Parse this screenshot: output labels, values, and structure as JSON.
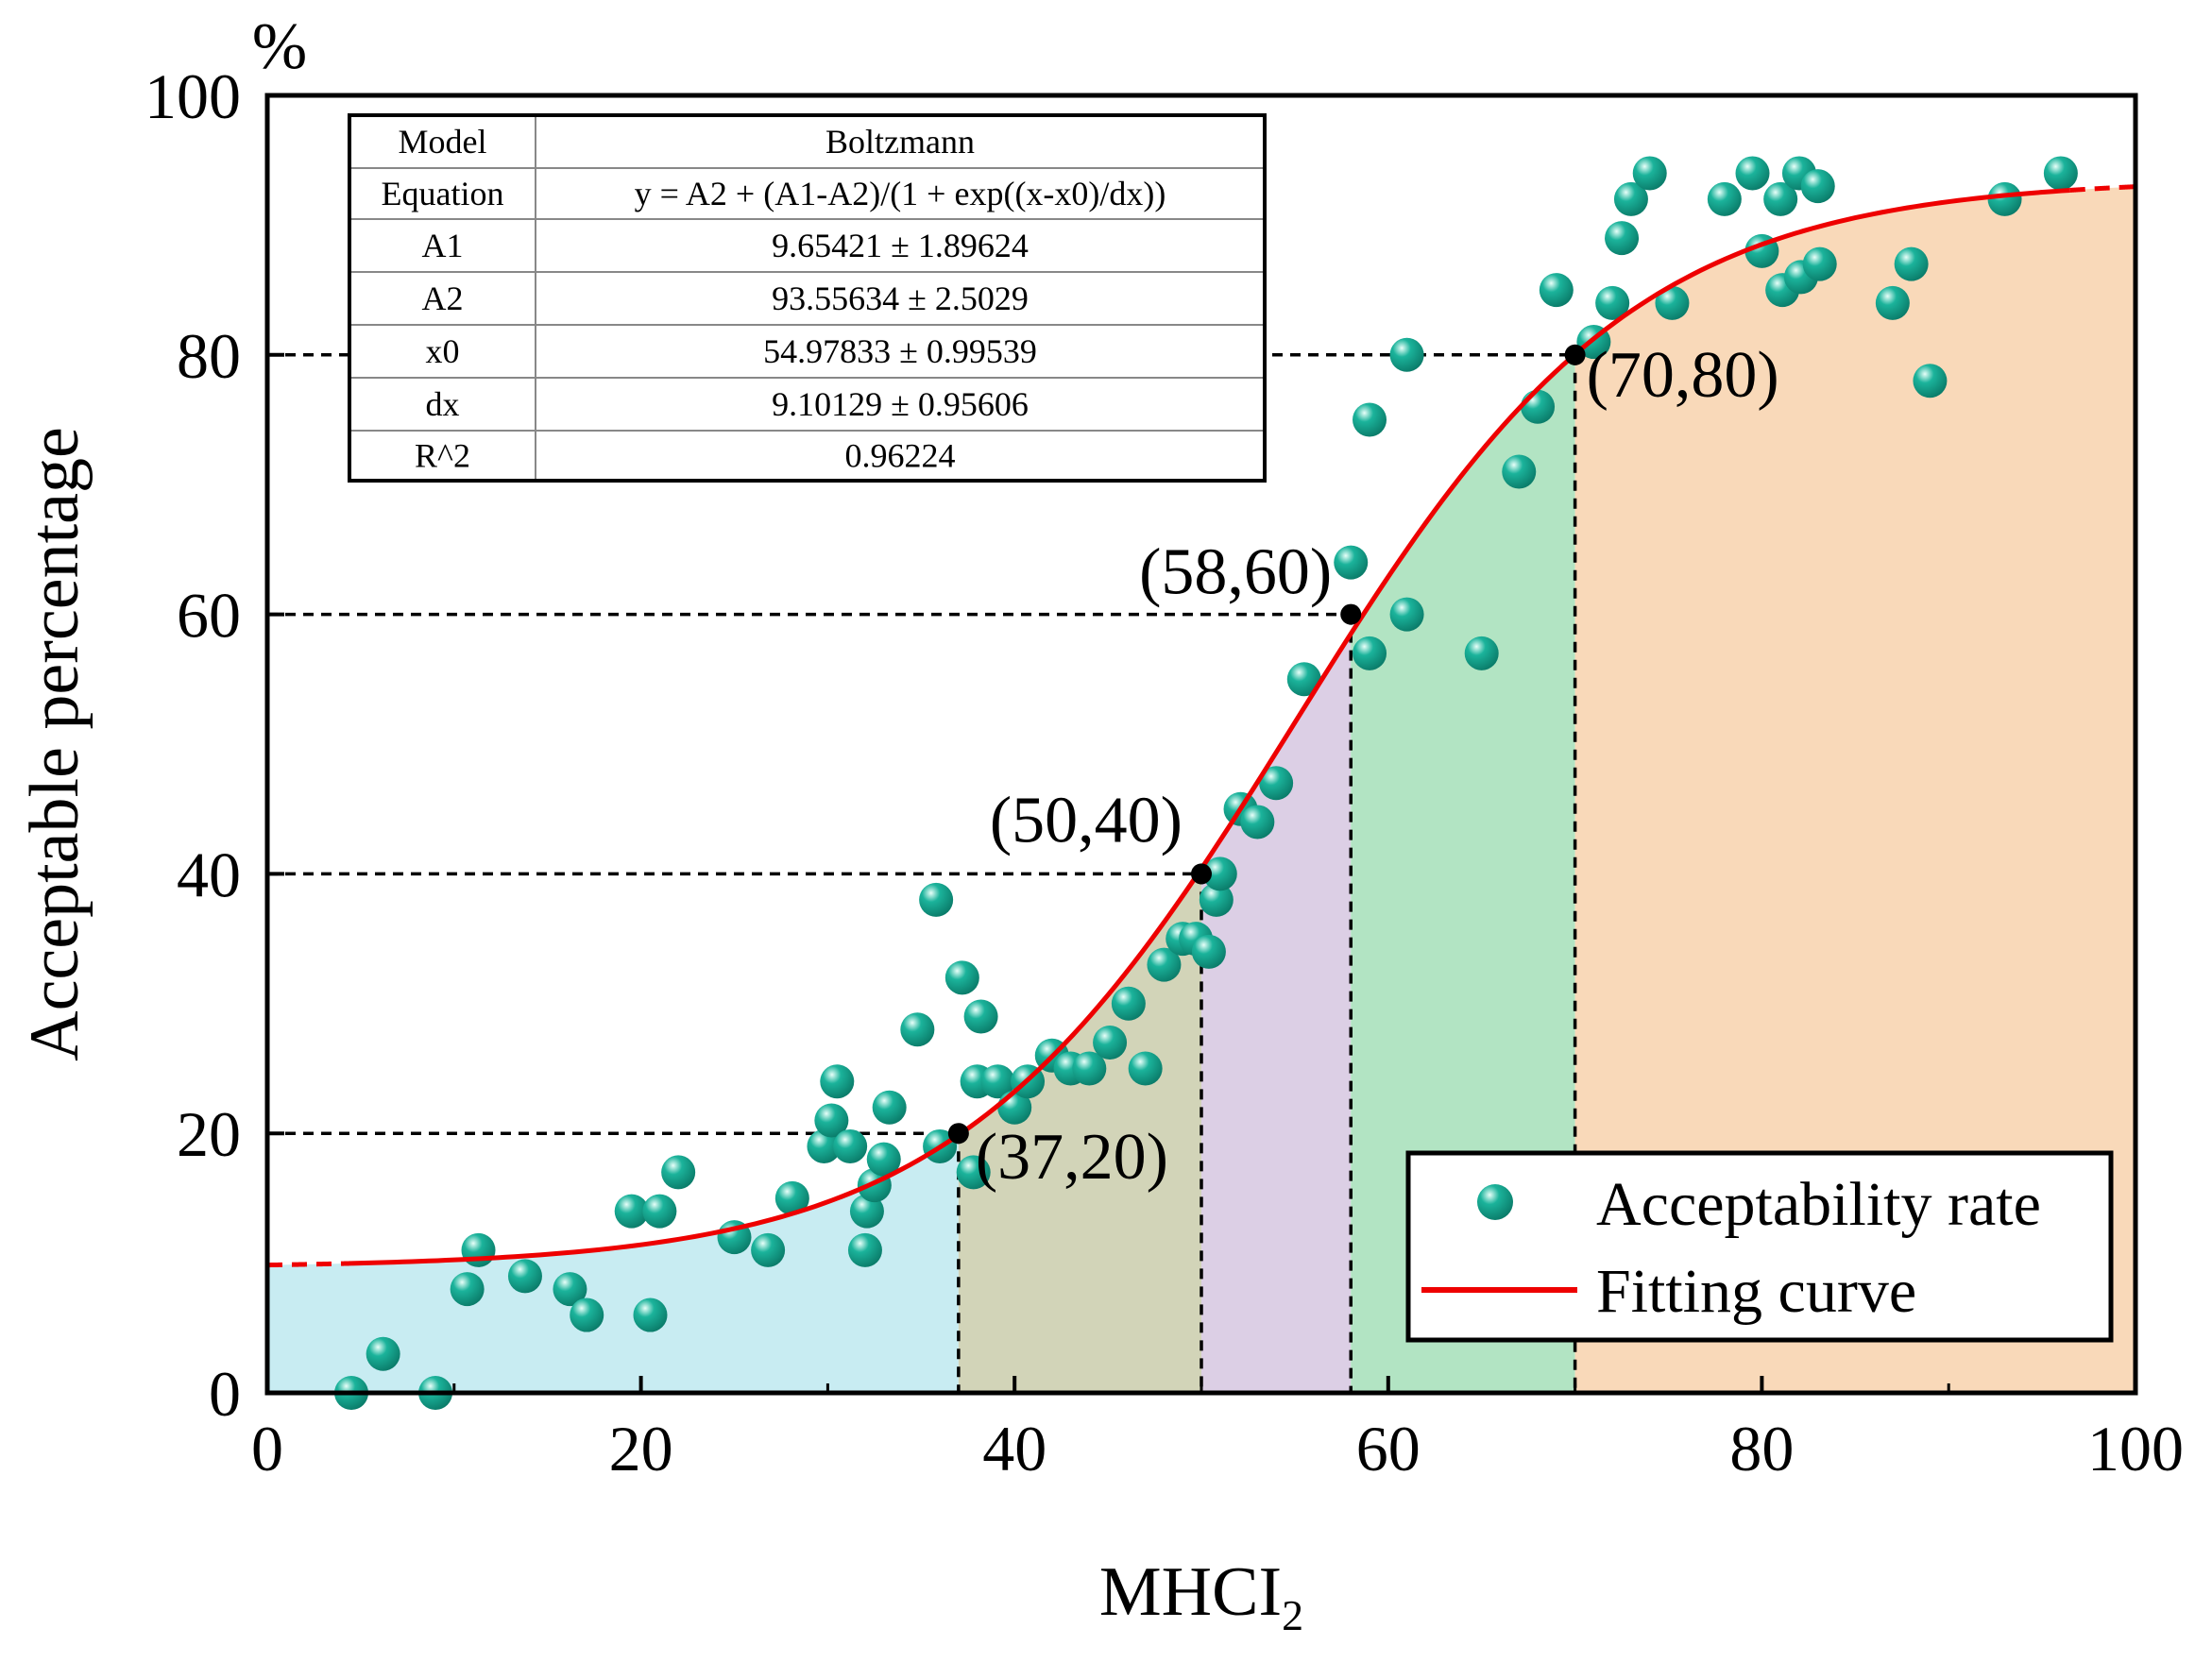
{
  "chart_data": {
    "type": "scatter",
    "xlabel": "MHCI",
    "xlabel_subscript": "2",
    "ylabel": "Acceptable percentage",
    "y_unit": "%",
    "xlim": [
      0,
      100
    ],
    "ylim": [
      0,
      100
    ],
    "x_ticks": [
      "0",
      "20",
      "40",
      "60",
      "80",
      "100"
    ],
    "y_ticks": [
      "0",
      "20",
      "40",
      "60",
      "80",
      "100"
    ],
    "grid": false,
    "legend_position": "bottom-right",
    "series": [
      {
        "name": "Acceptability rate",
        "kind": "scatter",
        "color": "#1bb39b",
        "points": [
          [
            4.5,
            0
          ],
          [
            6.2,
            3
          ],
          [
            9,
            0
          ],
          [
            10.7,
            8
          ],
          [
            11.3,
            11
          ],
          [
            13.8,
            9
          ],
          [
            16.2,
            8
          ],
          [
            17.1,
            6
          ],
          [
            19.5,
            14
          ],
          [
            20.5,
            6
          ],
          [
            21,
            14
          ],
          [
            22,
            17
          ],
          [
            25,
            12
          ],
          [
            26.8,
            11
          ],
          [
            28.1,
            15
          ],
          [
            29.8,
            19
          ],
          [
            30.2,
            21
          ],
          [
            30.5,
            24
          ],
          [
            31.2,
            19
          ],
          [
            32,
            11
          ],
          [
            32.1,
            14
          ],
          [
            32.5,
            16
          ],
          [
            33,
            18
          ],
          [
            33.3,
            22
          ],
          [
            34.8,
            28
          ],
          [
            35.8,
            38
          ],
          [
            36,
            19
          ],
          [
            37.2,
            32
          ],
          [
            37.8,
            17
          ],
          [
            38,
            24
          ],
          [
            38.2,
            29
          ],
          [
            39.1,
            24
          ],
          [
            40,
            22
          ],
          [
            40.7,
            24
          ],
          [
            42,
            26
          ],
          [
            43,
            25
          ],
          [
            44,
            25
          ],
          [
            45.1,
            27
          ],
          [
            46.1,
            30
          ],
          [
            47,
            25
          ],
          [
            48,
            33
          ],
          [
            49,
            35
          ],
          [
            49.7,
            35
          ],
          [
            50.4,
            34
          ],
          [
            50.8,
            38
          ],
          [
            51,
            40
          ],
          [
            52.1,
            45
          ],
          [
            53,
            44
          ],
          [
            54,
            47
          ],
          [
            55.5,
            55
          ],
          [
            58,
            64
          ],
          [
            59,
            75
          ],
          [
            59,
            57
          ],
          [
            61,
            80
          ],
          [
            61,
            60
          ],
          [
            65,
            57
          ],
          [
            67,
            71
          ],
          [
            68,
            76
          ],
          [
            69,
            85
          ],
          [
            71,
            81
          ],
          [
            72,
            84
          ],
          [
            72.5,
            89
          ],
          [
            73,
            92
          ],
          [
            74,
            94
          ],
          [
            75.2,
            84
          ],
          [
            78,
            92
          ],
          [
            79.5,
            94
          ],
          [
            80,
            88
          ],
          [
            81,
            92
          ],
          [
            81.1,
            85
          ],
          [
            82,
            94
          ],
          [
            82.1,
            86
          ],
          [
            83,
            93
          ],
          [
            83.1,
            87
          ],
          [
            87,
            84
          ],
          [
            88,
            87
          ],
          [
            89,
            78
          ],
          [
            93,
            92
          ],
          [
            96,
            94
          ]
        ]
      },
      {
        "name": "Fitting curve",
        "kind": "line",
        "color": "#ee0000",
        "model": "boltzmann",
        "params": {
          "A1": 9.65421,
          "A2": 93.55634,
          "x0": 54.97833,
          "dx": 9.10129
        },
        "x_range": [
          0,
          100
        ]
      }
    ],
    "key_points": [
      {
        "x": 37,
        "y": 20,
        "label": "(37,20)"
      },
      {
        "x": 50,
        "y": 40,
        "label": "(50,40)"
      },
      {
        "x": 58,
        "y": 60,
        "label": "(58,60)"
      },
      {
        "x": 70,
        "y": 80,
        "label": "(70,80)"
      }
    ],
    "regions": [
      {
        "x_range": [
          0,
          37
        ],
        "color": "#c8ecf2"
      },
      {
        "x_range": [
          37,
          50
        ],
        "color": "#d2d4b8"
      },
      {
        "x_range": [
          50,
          58
        ],
        "color": "#dccfe5"
      },
      {
        "x_range": [
          58,
          70
        ],
        "color": "#b2e4c3"
      },
      {
        "x_range": [
          70,
          100
        ],
        "color": "#f9d9b9"
      }
    ],
    "fit_table": {
      "rows": [
        [
          "Model",
          "Boltzmann"
        ],
        [
          "Equation",
          "y = A2 + (A1-A2)/(1 + exp((x-x0)/dx))"
        ],
        [
          "A1",
          "9.65421 ± 1.89624"
        ],
        [
          "A2",
          "93.55634 ± 2.5029"
        ],
        [
          "x0",
          "54.97833 ± 0.99539"
        ],
        [
          "dx",
          "9.10129 ± 0.95606"
        ],
        [
          "R^2",
          "0.96224"
        ]
      ]
    }
  }
}
